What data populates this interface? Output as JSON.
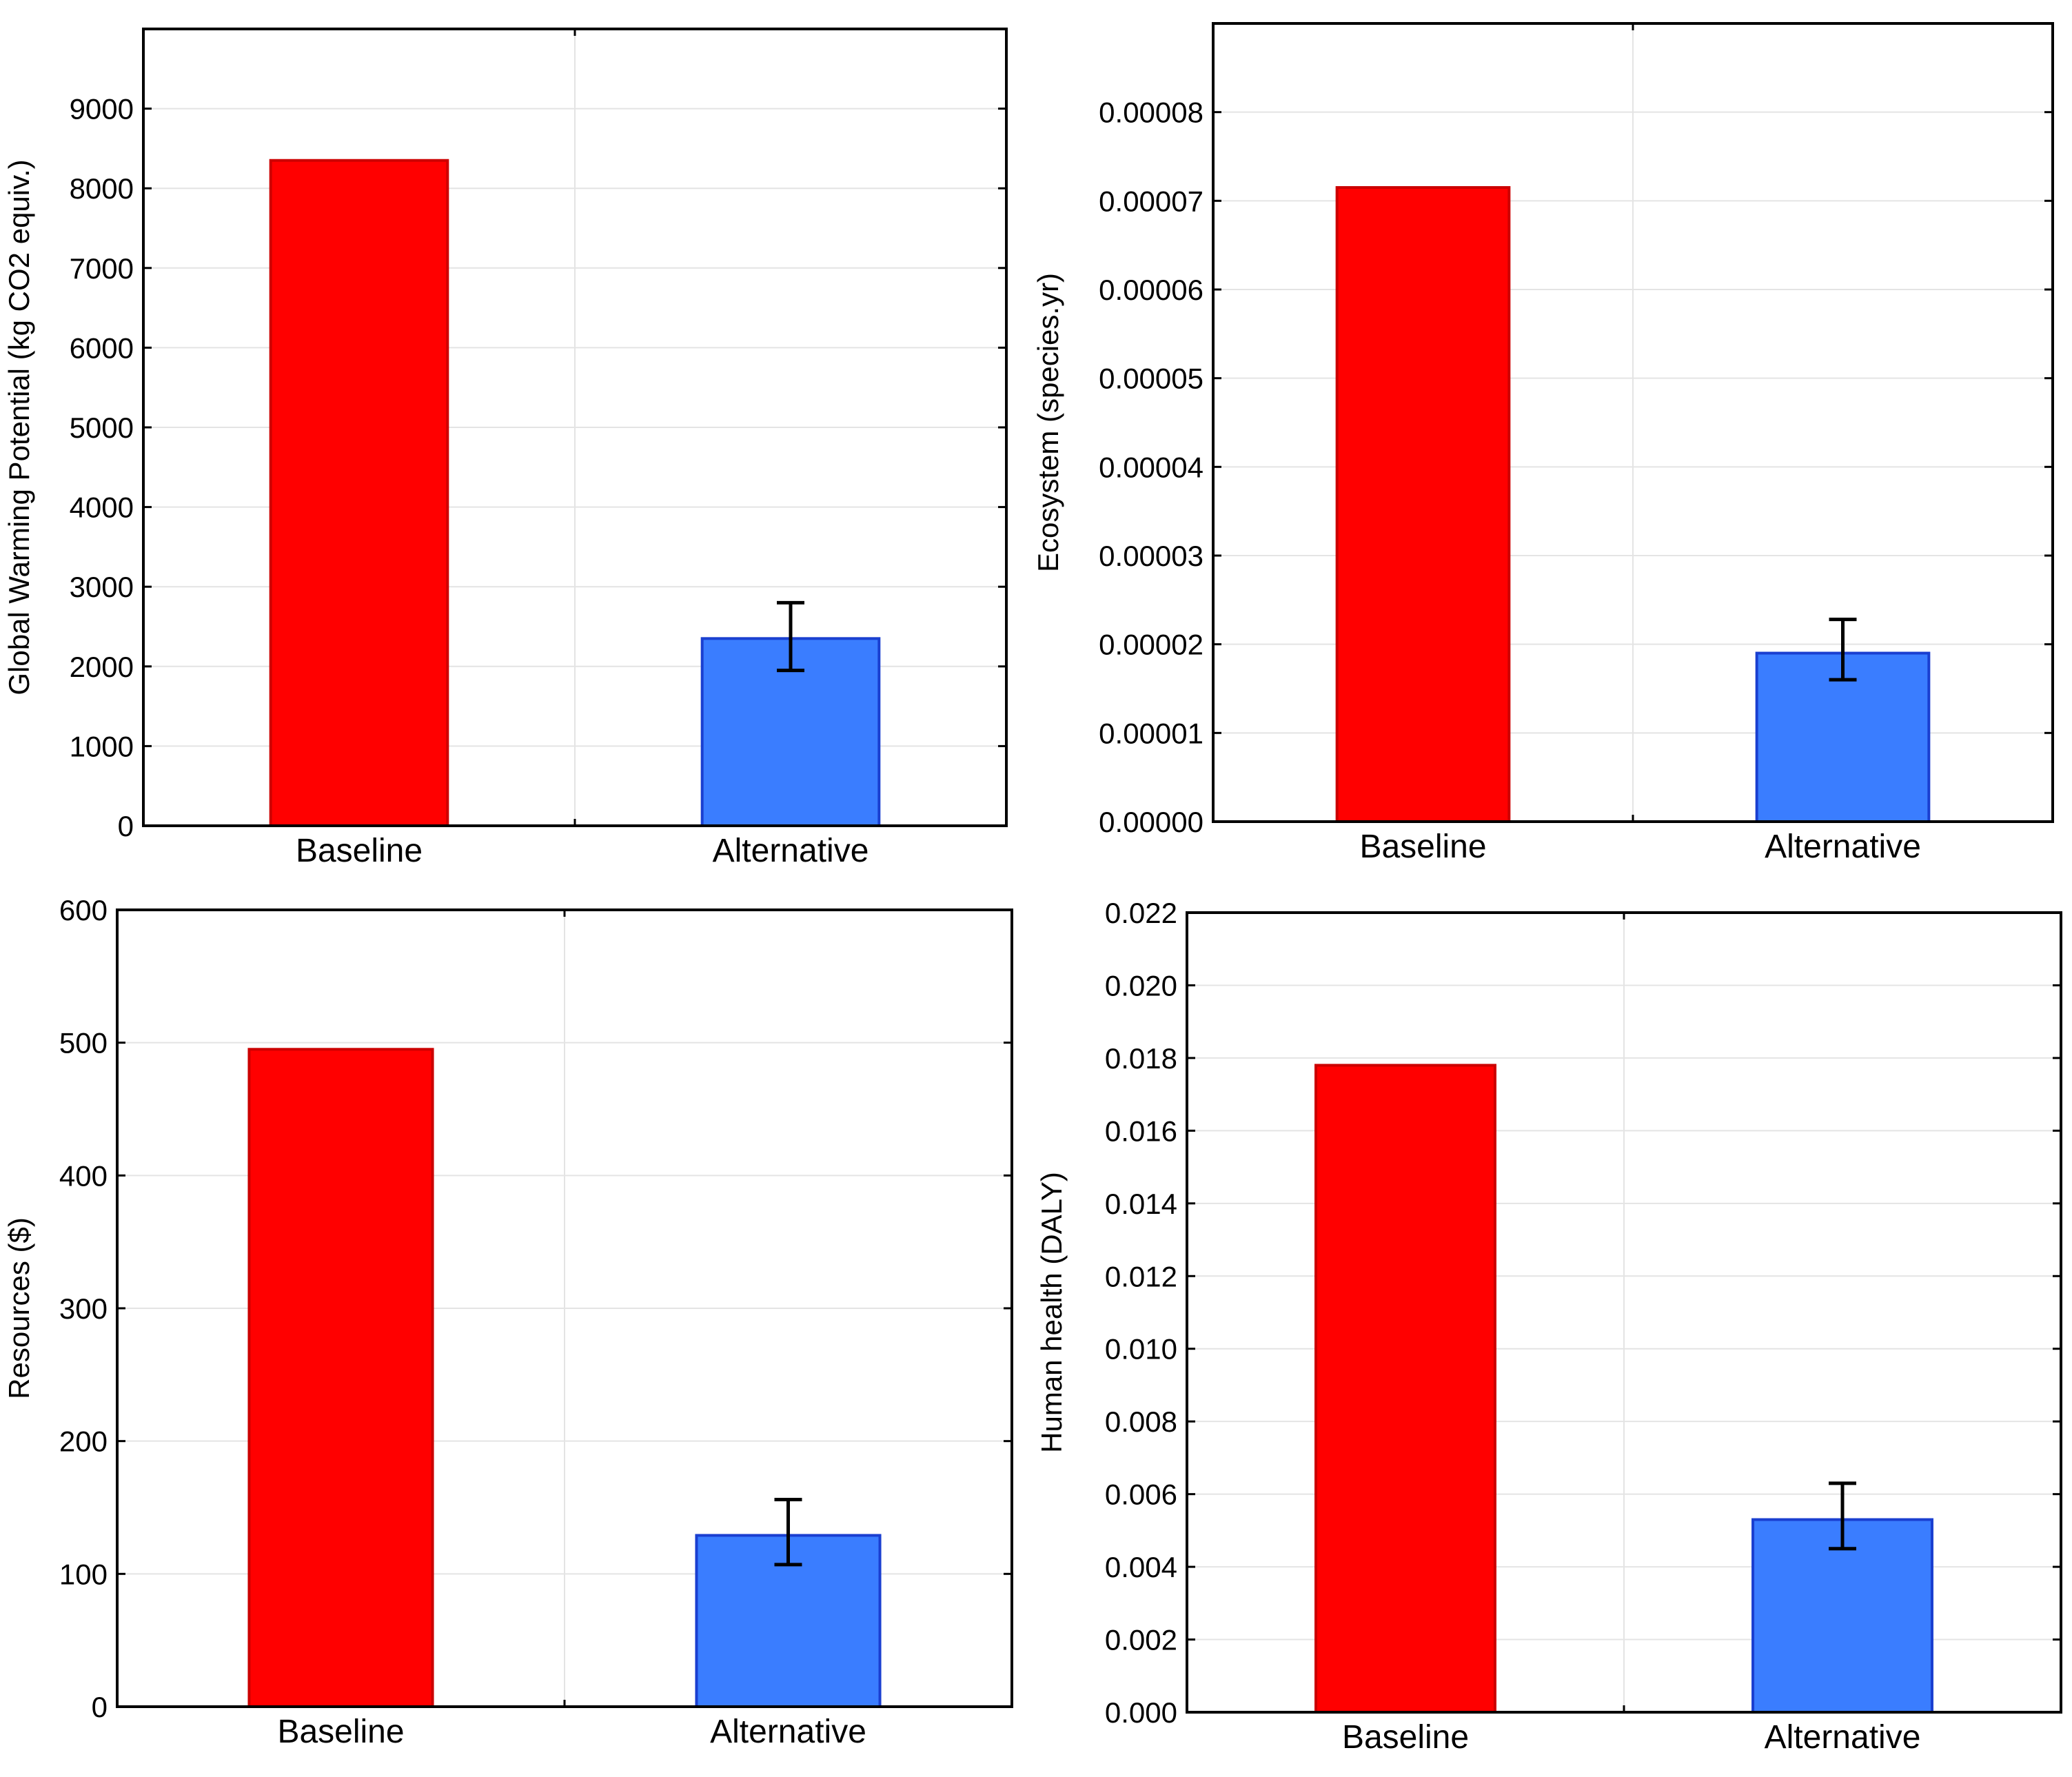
{
  "chart_data": [
    {
      "type": "bar",
      "title": "",
      "xlabel": "",
      "ylabel": "Global Warming Potential (kg CO2 equiv.)",
      "categories": [
        "Baseline",
        "Alternative"
      ],
      "values": [
        8350,
        2350
      ],
      "error_low": [
        null,
        1950
      ],
      "error_high": [
        null,
        2800
      ],
      "colors": [
        "#ff0000",
        "#3a7dff"
      ],
      "edge_colors": [
        "#cc0000",
        "#1a3fd0"
      ],
      "ylim": [
        0,
        10000
      ],
      "yticks": [
        0,
        1000,
        2000,
        3000,
        4000,
        5000,
        6000,
        7000,
        8000,
        9000
      ],
      "ytick_labels": [
        "0",
        "1000",
        "2000",
        "3000",
        "4000",
        "5000",
        "6000",
        "7000",
        "8000",
        "9000"
      ],
      "grid": true
    },
    {
      "type": "bar",
      "title": "",
      "xlabel": "",
      "ylabel": "Ecosystem (species.yr)",
      "categories": [
        "Baseline",
        "Alternative"
      ],
      "values": [
        7.15e-05,
        1.9e-05
      ],
      "error_low": [
        null,
        1.6e-05
      ],
      "error_high": [
        null,
        2.28e-05
      ],
      "colors": [
        "#ff0000",
        "#3a7dff"
      ],
      "edge_colors": [
        "#cc0000",
        "#1a3fd0"
      ],
      "ylim": [
        0,
        9e-05
      ],
      "yticks": [
        0,
        1e-05,
        2e-05,
        3e-05,
        4e-05,
        5e-05,
        6e-05,
        7e-05,
        8e-05
      ],
      "ytick_labels": [
        "0.00000",
        "0.00001",
        "0.00002",
        "0.00003",
        "0.00004",
        "0.00005",
        "0.00006",
        "0.00007",
        "0.00008"
      ],
      "grid": true
    },
    {
      "type": "bar",
      "title": "",
      "xlabel": "",
      "ylabel": "Resources ($)",
      "categories": [
        "Baseline",
        "Alternative"
      ],
      "values": [
        495,
        129
      ],
      "error_low": [
        null,
        107
      ],
      "error_high": [
        null,
        156
      ],
      "colors": [
        "#ff0000",
        "#3a7dff"
      ],
      "edge_colors": [
        "#cc0000",
        "#1a3fd0"
      ],
      "ylim": [
        0,
        600
      ],
      "yticks": [
        0,
        100,
        200,
        300,
        400,
        500,
        600
      ],
      "ytick_labels": [
        "0",
        "100",
        "200",
        "300",
        "400",
        "500",
        "600"
      ],
      "grid": true
    },
    {
      "type": "bar",
      "title": "",
      "xlabel": "",
      "ylabel": "Human health (DALY)",
      "categories": [
        "Baseline",
        "Alternative"
      ],
      "values": [
        0.0178,
        0.0053
      ],
      "error_low": [
        null,
        0.0045
      ],
      "error_high": [
        null,
        0.0063
      ],
      "colors": [
        "#ff0000",
        "#3a7dff"
      ],
      "edge_colors": [
        "#cc0000",
        "#1a3fd0"
      ],
      "ylim": [
        0,
        0.022
      ],
      "yticks": [
        0,
        0.002,
        0.004,
        0.006,
        0.008,
        0.01,
        0.012,
        0.014,
        0.016,
        0.018,
        0.02,
        0.022
      ],
      "ytick_labels": [
        "0.000",
        "0.002",
        "0.004",
        "0.006",
        "0.008",
        "0.010",
        "0.012",
        "0.014",
        "0.016",
        "0.018",
        "0.020",
        "0.022"
      ],
      "grid": true
    }
  ]
}
